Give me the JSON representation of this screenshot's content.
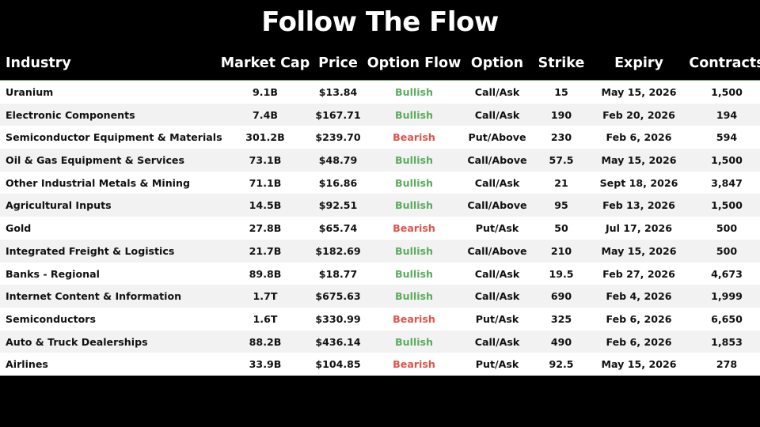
{
  "title": "Follow The Flow",
  "colors": {
    "bullish": "#5aab5c",
    "bearish": "#e0524a"
  },
  "columns": [
    "Industry",
    "Market Cap",
    "Price",
    "Option Flow",
    "Option",
    "Strike",
    "Expiry",
    "Contracts"
  ],
  "rows": [
    [
      "Uranium",
      "9.1B",
      "$13.84",
      "Bullish",
      "Call/Ask",
      "15",
      "May 15, 2026",
      "1,500"
    ],
    [
      "Electronic Components",
      "7.4B",
      "$167.71",
      "Bullish",
      "Call/Ask",
      "190",
      "Feb 20, 2026",
      "194"
    ],
    [
      "Semiconductor Equipment & Materials",
      "301.2B",
      "$239.70",
      "Bearish",
      "Put/Above",
      "230",
      "Feb 6, 2026",
      "594"
    ],
    [
      "Oil & Gas Equipment & Services",
      "73.1B",
      "$48.79",
      "Bullish",
      "Call/Above",
      "57.5",
      "May 15, 2026",
      "1,500"
    ],
    [
      "Other Industrial Metals & Mining",
      "71.1B",
      "$16.86",
      "Bullish",
      "Call/Ask",
      "21",
      "Sept 18, 2026",
      "3,847"
    ],
    [
      "Agricultural Inputs",
      "14.5B",
      "$92.51",
      "Bullish",
      "Call/Above",
      "95",
      "Feb 13, 2026",
      "1,500"
    ],
    [
      "Gold",
      "27.8B",
      "$65.74",
      "Bearish",
      "Put/Ask",
      "50",
      "Jul 17, 2026",
      "500"
    ],
    [
      "Integrated Freight & Logistics",
      "21.7B",
      "$182.69",
      "Bullish",
      "Call/Above",
      "210",
      "May 15, 2026",
      "500"
    ],
    [
      "Banks - Regional",
      "89.8B",
      "$18.77",
      "Bullish",
      "Call/Ask",
      "19.5",
      "Feb 27, 2026",
      "4,673"
    ],
    [
      "Internet Content & Information",
      "1.7T",
      "$675.63",
      "Bullish",
      "Call/Ask",
      "690",
      "Feb 4, 2026",
      "1,999"
    ],
    [
      "Semiconductors",
      "1.6T",
      "$330.99",
      "Bearish",
      "Put/Ask",
      "325",
      "Feb 6, 2026",
      "6,650"
    ],
    [
      "Auto & Truck Dealerships",
      "88.2B",
      "$436.14",
      "Bullish",
      "Call/Ask",
      "490",
      "Feb 6, 2026",
      "1,853"
    ],
    [
      "Airlines",
      "33.9B",
      "$104.85",
      "Bearish",
      "Put/Ask",
      "92.5",
      "May 15, 2026",
      "278"
    ]
  ]
}
